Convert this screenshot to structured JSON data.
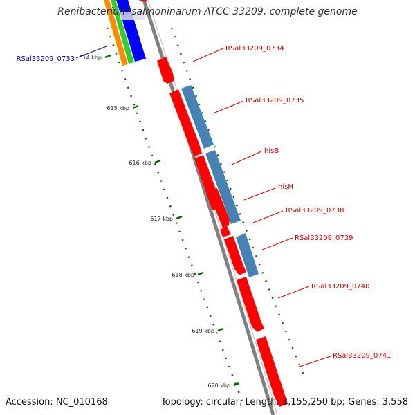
{
  "title": "Renibacterium salmoninarum ATCC 33209, complete genome",
  "accession_text": "Accession: NC_010168",
  "summary_text": "Topology: circular; Length: 3,155,250 bp; Genes: 3,558",
  "colors": {
    "forward_gene": "#ff0000",
    "reverse_gene": "#4682b4",
    "backbone": "#808080",
    "tick": "#006400",
    "label_forward": "#cc0000",
    "label_reverse": "#000099"
  },
  "scale_ticks": [
    {
      "label": "614 kbp"
    },
    {
      "label": "615 kbp"
    },
    {
      "label": "616 kbp"
    },
    {
      "label": "617 kbp"
    },
    {
      "label": "618 kbp"
    },
    {
      "label": "619 kbp"
    },
    {
      "label": "620 kbp"
    }
  ],
  "gene_labels": [
    {
      "name": "RSal33209_0733",
      "strand": "reverse"
    },
    {
      "name": "RSal33209_0734",
      "strand": "forward"
    },
    {
      "name": "RSal33209_0735",
      "strand": "forward"
    },
    {
      "name": "hisB",
      "strand": "forward"
    },
    {
      "name": "hisH",
      "strand": "forward"
    },
    {
      "name": "RSal33209_0738",
      "strand": "forward"
    },
    {
      "name": "RSal33209_0739",
      "strand": "forward"
    },
    {
      "name": "RSal33209_0740",
      "strand": "forward"
    },
    {
      "name": "RSal33209_0741",
      "strand": "forward"
    }
  ]
}
